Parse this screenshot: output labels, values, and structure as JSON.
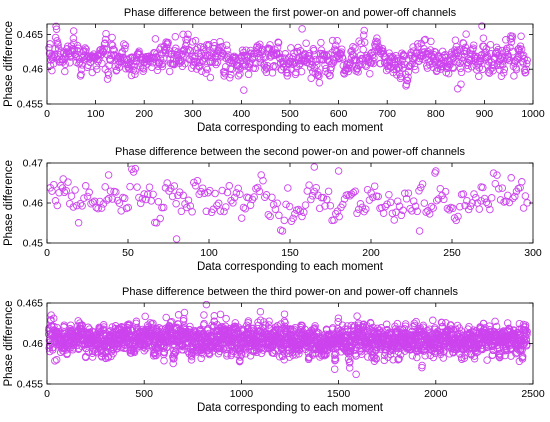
{
  "chart_data": [
    {
      "type": "scatter",
      "title": "Phase difference between the first power-on and power-off channels",
      "xlabel": "Data corresponding to each moment",
      "ylabel": "Phase difference",
      "xlim": [
        0,
        1000
      ],
      "ylim": [
        0.455,
        0.4665
      ],
      "xticks": [
        0,
        100,
        200,
        300,
        400,
        500,
        600,
        700,
        800,
        900,
        1000
      ],
      "yticks": [
        0.455,
        0.46,
        0.465
      ],
      "ytick_labels": [
        "0.455",
        "0.46",
        "0.465"
      ],
      "grid": false,
      "marker": "circle-open",
      "color": "#cc44ee",
      "n_points": 940,
      "center": 0.4615,
      "spread": 0.0017,
      "samples": [
        {
          "x": 10,
          "y": 0.4598
        },
        {
          "x": 55,
          "y": 0.4655
        },
        {
          "x": 120,
          "y": 0.46
        },
        {
          "x": 280,
          "y": 0.465
        },
        {
          "x": 405,
          "y": 0.457
        },
        {
          "x": 525,
          "y": 0.4658
        },
        {
          "x": 790,
          "y": 0.464
        },
        {
          "x": 845,
          "y": 0.4572
        },
        {
          "x": 895,
          "y": 0.4662
        },
        {
          "x": 935,
          "y": 0.459
        }
      ]
    },
    {
      "type": "scatter",
      "title": "Phase difference between the second power-on and power-off channels",
      "xlabel": "Data corresponding to each moment",
      "ylabel": "Phase difference",
      "xlim": [
        0,
        300
      ],
      "ylim": [
        0.45,
        0.47
      ],
      "xticks": [
        0,
        50,
        100,
        150,
        200,
        250,
        300
      ],
      "yticks": [
        0.45,
        0.46,
        0.47
      ],
      "ytick_labels": [
        "0.45",
        "0.46",
        "0.47"
      ],
      "grid": false,
      "marker": "circle-open",
      "color": "#cc44ee",
      "n_points": 270,
      "center": 0.4605,
      "spread": 0.0035,
      "samples": [
        {
          "x": 10,
          "y": 0.466
        },
        {
          "x": 38,
          "y": 0.467
        },
        {
          "x": 80,
          "y": 0.451
        },
        {
          "x": 165,
          "y": 0.469
        },
        {
          "x": 180,
          "y": 0.468
        },
        {
          "x": 240,
          "y": 0.468
        },
        {
          "x": 230,
          "y": 0.453
        },
        {
          "x": 268,
          "y": 0.464
        }
      ]
    },
    {
      "type": "scatter",
      "title": "Phase difference between the third power-on and power-off channels",
      "xlabel": "Data corresponding to each moment",
      "ylabel": "Phase difference",
      "xlim": [
        0,
        2500
      ],
      "ylim": [
        0.455,
        0.465
      ],
      "xticks": [
        0,
        500,
        1000,
        1500,
        2000,
        2500
      ],
      "yticks": [
        0.455,
        0.46,
        0.465
      ],
      "ytick_labels": [
        "0.455",
        "0.46",
        "0.465"
      ],
      "grid": false,
      "marker": "circle-open",
      "color": "#cc44ee",
      "n_points": 2460,
      "center": 0.4605,
      "spread": 0.0013,
      "samples": [
        {
          "x": 50,
          "y": 0.458
        },
        {
          "x": 820,
          "y": 0.4648
        },
        {
          "x": 1220,
          "y": 0.458
        },
        {
          "x": 1590,
          "y": 0.4562
        },
        {
          "x": 2430,
          "y": 0.4578
        }
      ]
    }
  ]
}
